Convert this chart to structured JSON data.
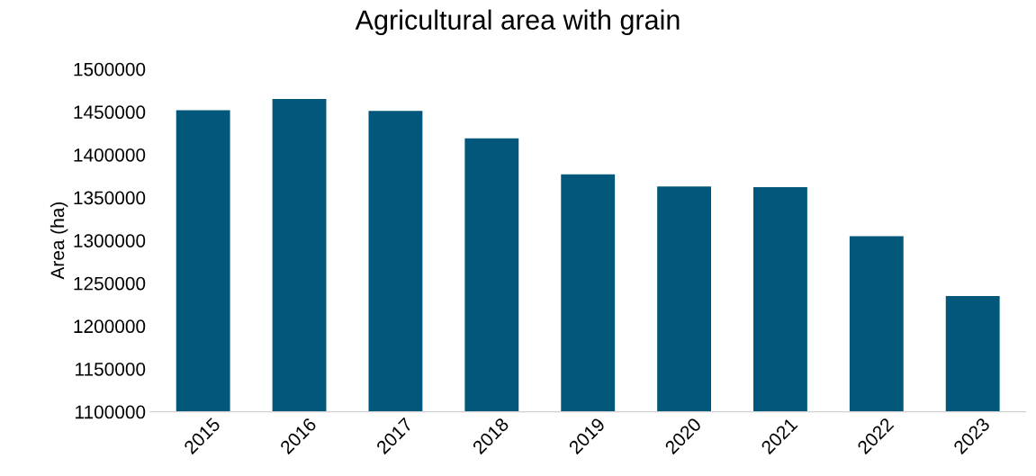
{
  "chart_data": {
    "type": "bar",
    "title": "Agricultural area with grain",
    "ylabel": "Area (ha)",
    "categories": [
      "2015",
      "2016",
      "2017",
      "2018",
      "2019",
      "2020",
      "2021",
      "2022",
      "2023"
    ],
    "values": [
      1452000,
      1465000,
      1451000,
      1419000,
      1377000,
      1363000,
      1362000,
      1305000,
      1235000
    ],
    "color": "#02587a",
    "ylim": [
      1100000,
      1500000
    ],
    "yticks": [
      1100000,
      1150000,
      1200000,
      1250000,
      1300000,
      1350000,
      1400000,
      1450000,
      1500000
    ],
    "grid": false
  }
}
